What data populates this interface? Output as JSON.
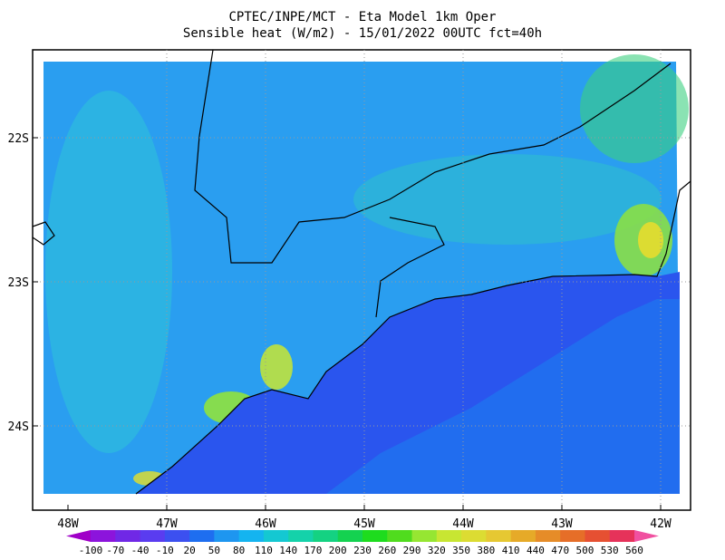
{
  "header": {
    "title": "CPTEC/INPE/MCT -  Eta Model 1km Oper",
    "subtitle": "Sensible heat (W/m2) - 15/01/2022 00UTC fct=40h"
  },
  "map": {
    "lat_labels": [
      "22S",
      "23S",
      "24S"
    ],
    "lon_labels": [
      "48W",
      "47W",
      "46W",
      "45W",
      "44W",
      "43W",
      "42W"
    ]
  },
  "colorbar": {
    "labels": [
      -100,
      -70,
      -40,
      -10,
      20,
      50,
      80,
      110,
      140,
      170,
      200,
      230,
      260,
      290,
      320,
      350,
      380,
      410,
      440,
      470,
      500,
      530,
      560
    ],
    "colors": [
      "#a000c8",
      "#8c14dc",
      "#7028e6",
      "#5a3cf0",
      "#3c50f0",
      "#1e6ef0",
      "#1e96f0",
      "#14b4f0",
      "#14c8d2",
      "#14d2aa",
      "#14d282",
      "#14d250",
      "#1edc1e",
      "#50dc1e",
      "#96e632",
      "#c8e632",
      "#dcdc32",
      "#e6c832",
      "#e6aa28",
      "#e68c28",
      "#e66e28",
      "#e65032",
      "#e6325a",
      "#f050a0"
    ]
  }
}
